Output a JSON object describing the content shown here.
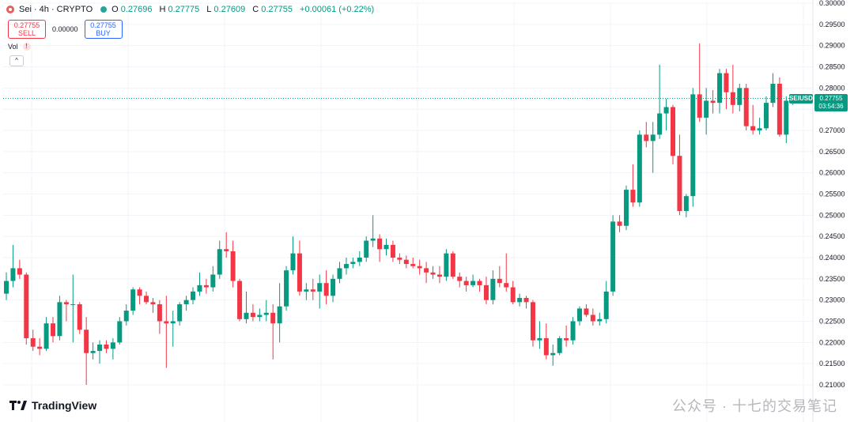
{
  "header": {
    "symbol_title": "Sei · 4h · CRYPTO",
    "ohlc": [
      {
        "k": "O",
        "v": "0.27696"
      },
      {
        "k": "H",
        "v": "0.27775"
      },
      {
        "k": "L",
        "v": "0.27609"
      },
      {
        "k": "C",
        "v": "0.27755"
      }
    ],
    "change": "+0.00061 (+0.22%)"
  },
  "trade": {
    "sell_price": "0.27755",
    "sell_label": "SELL",
    "spread": "0.00000",
    "buy_price": "0.27755",
    "buy_label": "BUY"
  },
  "volume_label": "Vol",
  "volume_warning_icon": "!",
  "collapse_icon": "^",
  "brand": "TradingView",
  "watermark": "公众号 · 十七的交易笔记",
  "price_label": {
    "symbol": "SEIUSD",
    "price": "0.27755",
    "countdown": "03:54:36"
  },
  "colors": {
    "up": "#089981",
    "down": "#f23645",
    "grid": "#f0f3fa",
    "axis_text": "#131722"
  },
  "chart_data": {
    "type": "candlestick",
    "title": "",
    "xlabel": "",
    "ylabel": "",
    "ylim": [
      0.207,
      0.3
    ],
    "y_ticks": [
      "0.30000",
      "0.29500",
      "0.29000",
      "0.28500",
      "0.28000",
      "0.27500",
      "0.27000",
      "0.26500",
      "0.26000",
      "0.25500",
      "0.25000",
      "0.24500",
      "0.24000",
      "0.23500",
      "0.23000",
      "0.22500",
      "0.22000",
      "0.21500",
      "0.21000"
    ],
    "y_tick_values": [
      0.3,
      0.295,
      0.29,
      0.285,
      0.28,
      0.275,
      0.27,
      0.265,
      0.26,
      0.255,
      0.25,
      0.245,
      0.24,
      0.235,
      0.23,
      0.225,
      0.22,
      0.215,
      0.21
    ],
    "grid": true,
    "last_price": 0.27755,
    "candles": [
      {
        "o": 0.2315,
        "h": 0.2365,
        "l": 0.23,
        "c": 0.2345
      },
      {
        "o": 0.2345,
        "h": 0.243,
        "l": 0.233,
        "c": 0.2375
      },
      {
        "o": 0.2375,
        "h": 0.2395,
        "l": 0.235,
        "c": 0.236
      },
      {
        "o": 0.236,
        "h": 0.2365,
        "l": 0.2195,
        "c": 0.221
      },
      {
        "o": 0.221,
        "h": 0.223,
        "l": 0.218,
        "c": 0.219
      },
      {
        "o": 0.219,
        "h": 0.221,
        "l": 0.217,
        "c": 0.2185
      },
      {
        "o": 0.2185,
        "h": 0.226,
        "l": 0.218,
        "c": 0.2245
      },
      {
        "o": 0.2245,
        "h": 0.226,
        "l": 0.22,
        "c": 0.2215
      },
      {
        "o": 0.2215,
        "h": 0.231,
        "l": 0.2205,
        "c": 0.2295
      },
      {
        "o": 0.2295,
        "h": 0.23,
        "l": 0.225,
        "c": 0.229
      },
      {
        "o": 0.229,
        "h": 0.236,
        "l": 0.22,
        "c": 0.229
      },
      {
        "o": 0.229,
        "h": 0.2295,
        "l": 0.222,
        "c": 0.223
      },
      {
        "o": 0.223,
        "h": 0.226,
        "l": 0.21,
        "c": 0.2175
      },
      {
        "o": 0.2175,
        "h": 0.22,
        "l": 0.216,
        "c": 0.218
      },
      {
        "o": 0.218,
        "h": 0.2205,
        "l": 0.215,
        "c": 0.2195
      },
      {
        "o": 0.2195,
        "h": 0.2205,
        "l": 0.2175,
        "c": 0.2185
      },
      {
        "o": 0.2185,
        "h": 0.221,
        "l": 0.216,
        "c": 0.22
      },
      {
        "o": 0.22,
        "h": 0.226,
        "l": 0.2195,
        "c": 0.225
      },
      {
        "o": 0.225,
        "h": 0.229,
        "l": 0.224,
        "c": 0.2275
      },
      {
        "o": 0.2275,
        "h": 0.233,
        "l": 0.2265,
        "c": 0.2325
      },
      {
        "o": 0.2325,
        "h": 0.233,
        "l": 0.229,
        "c": 0.231
      },
      {
        "o": 0.231,
        "h": 0.232,
        "l": 0.229,
        "c": 0.2295
      },
      {
        "o": 0.2295,
        "h": 0.2305,
        "l": 0.227,
        "c": 0.229
      },
      {
        "o": 0.229,
        "h": 0.23,
        "l": 0.222,
        "c": 0.225
      },
      {
        "o": 0.225,
        "h": 0.231,
        "l": 0.214,
        "c": 0.2245
      },
      {
        "o": 0.2245,
        "h": 0.2275,
        "l": 0.219,
        "c": 0.225
      },
      {
        "o": 0.225,
        "h": 0.2295,
        "l": 0.224,
        "c": 0.229
      },
      {
        "o": 0.229,
        "h": 0.231,
        "l": 0.2275,
        "c": 0.23
      },
      {
        "o": 0.23,
        "h": 0.233,
        "l": 0.229,
        "c": 0.232
      },
      {
        "o": 0.232,
        "h": 0.2365,
        "l": 0.231,
        "c": 0.2335
      },
      {
        "o": 0.2335,
        "h": 0.235,
        "l": 0.2315,
        "c": 0.233
      },
      {
        "o": 0.233,
        "h": 0.238,
        "l": 0.232,
        "c": 0.236
      },
      {
        "o": 0.236,
        "h": 0.244,
        "l": 0.235,
        "c": 0.242
      },
      {
        "o": 0.242,
        "h": 0.246,
        "l": 0.24,
        "c": 0.2415
      },
      {
        "o": 0.2415,
        "h": 0.244,
        "l": 0.233,
        "c": 0.2345
      },
      {
        "o": 0.2345,
        "h": 0.235,
        "l": 0.225,
        "c": 0.2255
      },
      {
        "o": 0.2255,
        "h": 0.232,
        "l": 0.2245,
        "c": 0.227
      },
      {
        "o": 0.227,
        "h": 0.229,
        "l": 0.225,
        "c": 0.226
      },
      {
        "o": 0.226,
        "h": 0.228,
        "l": 0.225,
        "c": 0.2265
      },
      {
        "o": 0.2265,
        "h": 0.23,
        "l": 0.225,
        "c": 0.227
      },
      {
        "o": 0.227,
        "h": 0.229,
        "l": 0.216,
        "c": 0.2245
      },
      {
        "o": 0.2245,
        "h": 0.234,
        "l": 0.22,
        "c": 0.2285
      },
      {
        "o": 0.2285,
        "h": 0.238,
        "l": 0.2275,
        "c": 0.237
      },
      {
        "o": 0.237,
        "h": 0.245,
        "l": 0.236,
        "c": 0.241
      },
      {
        "o": 0.241,
        "h": 0.244,
        "l": 0.231,
        "c": 0.232
      },
      {
        "o": 0.232,
        "h": 0.234,
        "l": 0.23,
        "c": 0.2325
      },
      {
        "o": 0.2325,
        "h": 0.235,
        "l": 0.23,
        "c": 0.232
      },
      {
        "o": 0.232,
        "h": 0.236,
        "l": 0.228,
        "c": 0.234
      },
      {
        "o": 0.234,
        "h": 0.237,
        "l": 0.229,
        "c": 0.231
      },
      {
        "o": 0.231,
        "h": 0.236,
        "l": 0.2295,
        "c": 0.235
      },
      {
        "o": 0.235,
        "h": 0.239,
        "l": 0.234,
        "c": 0.2375
      },
      {
        "o": 0.2375,
        "h": 0.24,
        "l": 0.236,
        "c": 0.2385
      },
      {
        "o": 0.2385,
        "h": 0.24,
        "l": 0.2375,
        "c": 0.239
      },
      {
        "o": 0.239,
        "h": 0.2415,
        "l": 0.238,
        "c": 0.24
      },
      {
        "o": 0.24,
        "h": 0.245,
        "l": 0.239,
        "c": 0.244
      },
      {
        "o": 0.244,
        "h": 0.25,
        "l": 0.2425,
        "c": 0.2445
      },
      {
        "o": 0.2445,
        "h": 0.2455,
        "l": 0.239,
        "c": 0.242
      },
      {
        "o": 0.242,
        "h": 0.2445,
        "l": 0.2405,
        "c": 0.243
      },
      {
        "o": 0.243,
        "h": 0.244,
        "l": 0.239,
        "c": 0.24
      },
      {
        "o": 0.24,
        "h": 0.241,
        "l": 0.2385,
        "c": 0.2395
      },
      {
        "o": 0.2395,
        "h": 0.2405,
        "l": 0.2375,
        "c": 0.2385
      },
      {
        "o": 0.2385,
        "h": 0.24,
        "l": 0.2375,
        "c": 0.238
      },
      {
        "o": 0.238,
        "h": 0.2395,
        "l": 0.236,
        "c": 0.2375
      },
      {
        "o": 0.2375,
        "h": 0.239,
        "l": 0.234,
        "c": 0.2365
      },
      {
        "o": 0.2365,
        "h": 0.238,
        "l": 0.235,
        "c": 0.236
      },
      {
        "o": 0.236,
        "h": 0.238,
        "l": 0.234,
        "c": 0.2355
      },
      {
        "o": 0.2355,
        "h": 0.242,
        "l": 0.2345,
        "c": 0.241
      },
      {
        "o": 0.241,
        "h": 0.2415,
        "l": 0.235,
        "c": 0.2355
      },
      {
        "o": 0.2355,
        "h": 0.2365,
        "l": 0.233,
        "c": 0.2345
      },
      {
        "o": 0.2345,
        "h": 0.2355,
        "l": 0.232,
        "c": 0.2335
      },
      {
        "o": 0.2335,
        "h": 0.236,
        "l": 0.233,
        "c": 0.2345
      },
      {
        "o": 0.2345,
        "h": 0.235,
        "l": 0.232,
        "c": 0.2335
      },
      {
        "o": 0.2335,
        "h": 0.2355,
        "l": 0.229,
        "c": 0.23
      },
      {
        "o": 0.23,
        "h": 0.237,
        "l": 0.229,
        "c": 0.235
      },
      {
        "o": 0.235,
        "h": 0.238,
        "l": 0.233,
        "c": 0.234
      },
      {
        "o": 0.234,
        "h": 0.241,
        "l": 0.232,
        "c": 0.233
      },
      {
        "o": 0.233,
        "h": 0.2345,
        "l": 0.229,
        "c": 0.2295
      },
      {
        "o": 0.2295,
        "h": 0.2315,
        "l": 0.2285,
        "c": 0.2305
      },
      {
        "o": 0.2305,
        "h": 0.231,
        "l": 0.228,
        "c": 0.2295
      },
      {
        "o": 0.2295,
        "h": 0.23,
        "l": 0.219,
        "c": 0.2205
      },
      {
        "o": 0.2205,
        "h": 0.225,
        "l": 0.2185,
        "c": 0.221
      },
      {
        "o": 0.221,
        "h": 0.2245,
        "l": 0.216,
        "c": 0.217
      },
      {
        "o": 0.217,
        "h": 0.2195,
        "l": 0.2145,
        "c": 0.2175
      },
      {
        "o": 0.2175,
        "h": 0.2215,
        "l": 0.217,
        "c": 0.221
      },
      {
        "o": 0.221,
        "h": 0.224,
        "l": 0.219,
        "c": 0.2205
      },
      {
        "o": 0.2205,
        "h": 0.226,
        "l": 0.2195,
        "c": 0.225
      },
      {
        "o": 0.225,
        "h": 0.2285,
        "l": 0.224,
        "c": 0.228
      },
      {
        "o": 0.228,
        "h": 0.229,
        "l": 0.226,
        "c": 0.2265
      },
      {
        "o": 0.2265,
        "h": 0.228,
        "l": 0.224,
        "c": 0.225
      },
      {
        "o": 0.225,
        "h": 0.227,
        "l": 0.224,
        "c": 0.2255
      },
      {
        "o": 0.2255,
        "h": 0.2345,
        "l": 0.2245,
        "c": 0.232
      },
      {
        "o": 0.232,
        "h": 0.25,
        "l": 0.231,
        "c": 0.2485
      },
      {
        "o": 0.2485,
        "h": 0.25,
        "l": 0.246,
        "c": 0.2475
      },
      {
        "o": 0.2475,
        "h": 0.257,
        "l": 0.2465,
        "c": 0.256
      },
      {
        "o": 0.256,
        "h": 0.262,
        "l": 0.252,
        "c": 0.253
      },
      {
        "o": 0.253,
        "h": 0.27,
        "l": 0.252,
        "c": 0.269
      },
      {
        "o": 0.269,
        "h": 0.272,
        "l": 0.266,
        "c": 0.2675
      },
      {
        "o": 0.2675,
        "h": 0.272,
        "l": 0.26,
        "c": 0.269
      },
      {
        "o": 0.269,
        "h": 0.2855,
        "l": 0.268,
        "c": 0.274
      },
      {
        "o": 0.274,
        "h": 0.2775,
        "l": 0.27,
        "c": 0.2755
      },
      {
        "o": 0.2755,
        "h": 0.276,
        "l": 0.262,
        "c": 0.264
      },
      {
        "o": 0.264,
        "h": 0.269,
        "l": 0.25,
        "c": 0.251
      },
      {
        "o": 0.251,
        "h": 0.255,
        "l": 0.2495,
        "c": 0.2545
      },
      {
        "o": 0.2545,
        "h": 0.28,
        "l": 0.252,
        "c": 0.2785
      },
      {
        "o": 0.2785,
        "h": 0.2905,
        "l": 0.272,
        "c": 0.273
      },
      {
        "o": 0.273,
        "h": 0.28,
        "l": 0.269,
        "c": 0.277
      },
      {
        "o": 0.277,
        "h": 0.2795,
        "l": 0.274,
        "c": 0.2765
      },
      {
        "o": 0.2765,
        "h": 0.2845,
        "l": 0.274,
        "c": 0.2835
      },
      {
        "o": 0.2835,
        "h": 0.2845,
        "l": 0.275,
        "c": 0.279
      },
      {
        "o": 0.279,
        "h": 0.2855,
        "l": 0.274,
        "c": 0.276
      },
      {
        "o": 0.276,
        "h": 0.281,
        "l": 0.2745,
        "c": 0.28
      },
      {
        "o": 0.28,
        "h": 0.281,
        "l": 0.27,
        "c": 0.271
      },
      {
        "o": 0.271,
        "h": 0.276,
        "l": 0.269,
        "c": 0.27
      },
      {
        "o": 0.27,
        "h": 0.273,
        "l": 0.269,
        "c": 0.2705
      },
      {
        "o": 0.2705,
        "h": 0.278,
        "l": 0.27,
        "c": 0.2765
      },
      {
        "o": 0.2765,
        "h": 0.2835,
        "l": 0.2755,
        "c": 0.281
      },
      {
        "o": 0.281,
        "h": 0.2825,
        "l": 0.2685,
        "c": 0.269
      },
      {
        "o": 0.269,
        "h": 0.278,
        "l": 0.267,
        "c": 0.277
      },
      {
        "o": 0.277,
        "h": 0.2778,
        "l": 0.276,
        "c": 0.27755
      }
    ]
  }
}
